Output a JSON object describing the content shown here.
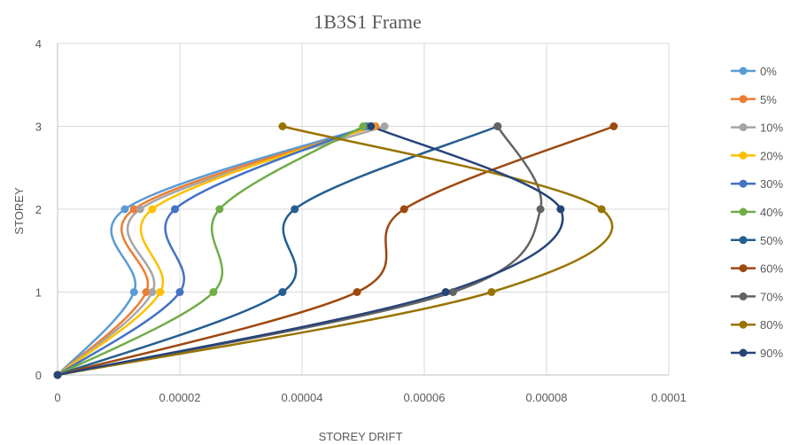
{
  "chart_data": {
    "type": "line",
    "title": "1B3S1 Frame",
    "xlabel": "STOREY DRIFT",
    "ylabel": "STOREY",
    "xlim": [
      0,
      0.0001
    ],
    "ylim": [
      0,
      4
    ],
    "x_ticks": [
      "0",
      "0.00002",
      "0.00004",
      "0.00006",
      "0.00008",
      "0.0001"
    ],
    "x_tick_values": [
      0,
      2e-05,
      4e-05,
      6e-05,
      8e-05,
      0.0001
    ],
    "y_ticks": [
      "0",
      "1",
      "2",
      "3",
      "4"
    ],
    "y_tick_values": [
      0,
      1,
      2,
      3,
      4
    ],
    "grid": "vertical and horizontal major gridlines",
    "legend_position": "right",
    "smooth": true,
    "series": [
      {
        "name": "0%",
        "color": "#5B9BD5",
        "x": [
          0,
          1.25e-05,
          1.1e-05,
          5.1e-05
        ],
        "y": [
          0,
          1,
          2,
          3
        ]
      },
      {
        "name": "5%",
        "color": "#ED7D31",
        "x": [
          0,
          1.45e-05,
          1.25e-05,
          5.2e-05
        ],
        "y": [
          0,
          1,
          2,
          3
        ]
      },
      {
        "name": "10%",
        "color": "#A5A5A5",
        "x": [
          0,
          1.55e-05,
          1.35e-05,
          5.35e-05
        ],
        "y": [
          0,
          1,
          2,
          3
        ]
      },
      {
        "name": "20%",
        "color": "#FFC000",
        "x": [
          0,
          1.68e-05,
          1.55e-05,
          5.15e-05
        ],
        "y": [
          0,
          1,
          2,
          3
        ]
      },
      {
        "name": "30%",
        "color": "#4472C4",
        "x": [
          0,
          2e-05,
          1.92e-05,
          5.05e-05
        ],
        "y": [
          0,
          1,
          2,
          3
        ]
      },
      {
        "name": "40%",
        "color": "#70AD47",
        "x": [
          0,
          2.55e-05,
          2.65e-05,
          5e-05
        ],
        "y": [
          0,
          1,
          2,
          3
        ]
      },
      {
        "name": "50%",
        "color": "#255E91",
        "x": [
          0,
          3.68e-05,
          3.88e-05,
          7.2e-05
        ],
        "y": [
          0,
          1,
          2,
          3
        ]
      },
      {
        "name": "60%",
        "color": "#9E480E",
        "x": [
          0,
          4.9e-05,
          5.67e-05,
          9.1e-05
        ],
        "y": [
          0,
          1,
          2,
          3
        ]
      },
      {
        "name": "70%",
        "color": "#636363",
        "x": [
          0,
          6.47e-05,
          7.9e-05,
          7.2e-05
        ],
        "y": [
          0,
          1,
          2,
          3
        ]
      },
      {
        "name": "80%",
        "color": "#997300",
        "x": [
          0,
          7.1e-05,
          8.9e-05,
          3.68e-05
        ],
        "y": [
          0,
          1,
          2,
          3
        ]
      },
      {
        "name": "90%",
        "color": "#264478",
        "x": [
          0,
          6.35e-05,
          8.23e-05,
          5.13e-05
        ],
        "y": [
          0,
          1,
          2,
          3
        ]
      }
    ]
  }
}
